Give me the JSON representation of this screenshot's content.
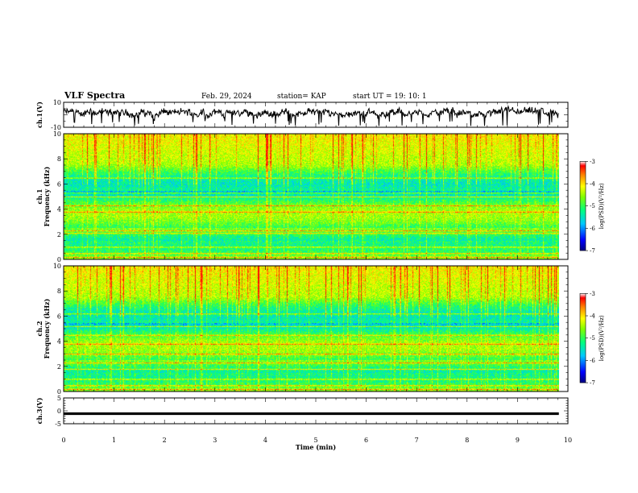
{
  "header": {
    "title": "VLF Spectra",
    "date": "Feb. 29, 2024",
    "station": "station= KAP",
    "start_ut": "start  UT =   19: 10: 1"
  },
  "colors": {
    "spectrogram_scale": [
      "#000080",
      "#0000ff",
      "#00c8ff",
      "#00ff80",
      "#80ff00",
      "#ffff00",
      "#ff8000",
      "#ff0000",
      "#ffffff"
    ],
    "trace": "#000000",
    "axis": "#000000"
  },
  "chart_data": [
    {
      "type": "line",
      "name": "ch1-waveform",
      "ylabel": "ch.1(V)",
      "ylim": [
        -10,
        10
      ],
      "ytick_labels": [
        "10",
        "-10"
      ],
      "x_range_min": [
        0,
        9.8
      ],
      "note_values": "dense noisy trace, approximately -5 to 8 V"
    },
    {
      "type": "heatmap",
      "name": "ch1-spectrogram",
      "ylabel": "ch.1\nFrequency (kHz)",
      "ylim": [
        0,
        10
      ],
      "ytick_labels": [
        "0",
        "2",
        "4",
        "6",
        "8",
        "10"
      ],
      "x_range_min": [
        0,
        9.8
      ],
      "colorbar": {
        "label": "log(PSD)(V²/Hz)",
        "ticks": [
          "-3",
          "-4",
          "-5",
          "-6",
          "-7"
        ],
        "range": [
          -7,
          -3
        ]
      },
      "horizontal_lines_khz": [
        0.2,
        0.5,
        1.0,
        2.1,
        2.3,
        3.8,
        4.3,
        5.0,
        5.3,
        6.5
      ]
    },
    {
      "type": "heatmap",
      "name": "ch2-spectrogram",
      "ylabel": "ch.2\nFrequency (kHz)",
      "ylim": [
        0,
        10
      ],
      "ytick_labels": [
        "0",
        "2",
        "4",
        "6",
        "8",
        "10"
      ],
      "x_range_min": [
        0,
        9.8
      ],
      "colorbar": {
        "label": "log(PSD)(V²/Hz)",
        "ticks": [
          "-3",
          "-4",
          "-5",
          "-6",
          "-7"
        ],
        "range": [
          -7,
          -3
        ]
      },
      "horizontal_lines_khz": [
        0.2,
        0.5,
        1.0,
        1.8,
        2.3,
        3.0,
        3.8,
        4.5,
        5.2,
        6.2
      ]
    },
    {
      "type": "line",
      "name": "ch3-trace",
      "ylabel": "ch.3(V)",
      "ylim": [
        -5,
        5
      ],
      "ytick_labels": [
        "5",
        "0",
        "-5"
      ],
      "x_range_min": [
        0,
        9.8
      ],
      "note_values": "thick flat band near -1 V"
    }
  ],
  "xaxis": {
    "label": "Time  (min)",
    "ticks": [
      "0",
      "1",
      "2",
      "3",
      "4",
      "5",
      "6",
      "7",
      "8",
      "9",
      "10"
    ],
    "range": [
      0,
      10
    ]
  }
}
